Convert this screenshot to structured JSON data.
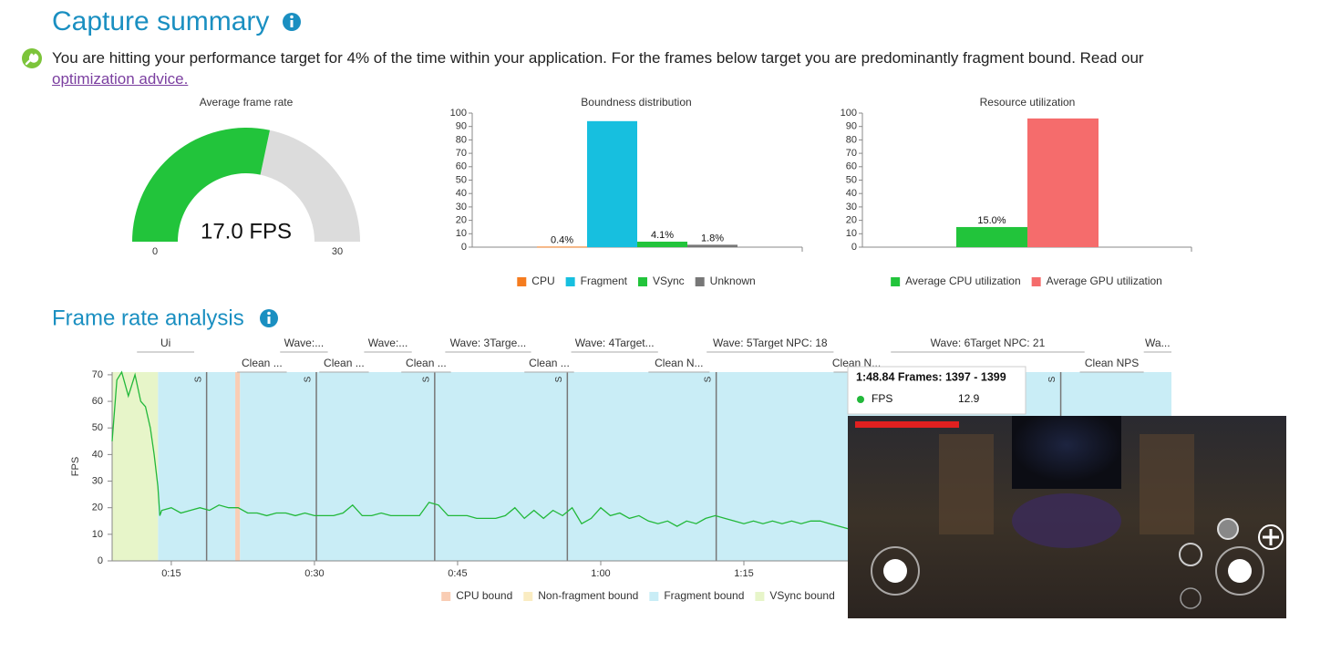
{
  "capture_summary": {
    "title": "Capture summary",
    "message": "You are hitting your performance target for 4% of the time within your application. For the frames below target you are predominantly fragment bound. Read our",
    "link": "optimization advice."
  },
  "frame_rate_analysis": {
    "title": "Frame rate analysis"
  },
  "chart_data": [
    {
      "type": "gauge",
      "title": "Average frame rate",
      "values": [
        17.0
      ],
      "value_labels": [
        "17.0 FPS"
      ],
      "ylim": [
        0,
        30
      ],
      "yticks": [
        0,
        30
      ],
      "color": "#22c43b",
      "track_color": "#dcdcdc"
    },
    {
      "type": "bar",
      "title": "Boundness distribution",
      "ylim": [
        0,
        100
      ],
      "yticks": [
        0,
        10,
        20,
        30,
        40,
        50,
        60,
        70,
        80,
        90,
        100
      ],
      "series": [
        {
          "name": "CPU",
          "color": "#f57c1f",
          "values": [
            0.4
          ],
          "value_labels": [
            "0.4%"
          ]
        },
        {
          "name": "Fragment",
          "color": "#17bfdf",
          "values": [
            94
          ]
        },
        {
          "name": "VSync",
          "color": "#22c43b",
          "values": [
            4.1
          ],
          "value_labels": [
            "4.1%"
          ]
        },
        {
          "name": "Unknown",
          "color": "#777777",
          "values": [
            1.8
          ],
          "value_labels": [
            "1.8%"
          ]
        }
      ]
    },
    {
      "type": "bar",
      "title": "Resource utilization",
      "ylim": [
        0,
        100
      ],
      "yticks": [
        0,
        10,
        20,
        30,
        40,
        50,
        60,
        70,
        80,
        90,
        100
      ],
      "series": [
        {
          "name": "Average CPU utilization",
          "color": "#22c43b",
          "values": [
            15.0
          ],
          "value_labels": [
            "15.0%"
          ]
        },
        {
          "name": "Average GPU utilization",
          "color": "#f56c6c",
          "values": [
            96
          ]
        }
      ]
    },
    {
      "type": "line",
      "ylabel": "FPS",
      "xlim": [
        8.8,
        119.8
      ],
      "ylim": [
        0,
        71
      ],
      "xticks": [
        {
          "value": 15,
          "label": "0:15"
        },
        {
          "value": 30,
          "label": "0:30"
        },
        {
          "value": 45,
          "label": "0:45"
        },
        {
          "value": 60,
          "label": "1:00"
        },
        {
          "value": 75,
          "label": "1:15"
        }
      ],
      "yticks": [
        0,
        10,
        20,
        30,
        40,
        50,
        60,
        70
      ],
      "line": {
        "color": "#22b83a",
        "x": [
          8.8,
          9.3,
          9.8,
          10.5,
          11.2,
          11.8,
          12.3,
          12.8,
          13.2,
          13.6,
          13.8,
          14,
          15,
          16,
          17,
          18,
          19,
          20,
          21,
          22,
          23,
          24,
          25,
          26,
          27,
          28,
          29,
          30,
          31,
          32,
          33,
          34,
          35,
          36,
          37,
          38,
          39,
          40,
          41,
          42,
          43,
          44,
          45,
          46,
          47,
          48,
          49,
          50,
          51,
          52,
          53,
          54,
          55,
          56,
          57,
          58,
          59,
          60,
          61,
          62,
          63,
          64,
          65,
          66,
          67,
          68,
          69,
          70,
          71,
          72,
          73,
          74,
          75,
          76,
          77,
          78,
          79,
          80,
          81,
          82,
          83,
          84,
          85,
          86
        ],
        "values": [
          45,
          68,
          71,
          62,
          70,
          60,
          58,
          50,
          40,
          28,
          17,
          19,
          20,
          18,
          19,
          20,
          19,
          21,
          20,
          20,
          18,
          18,
          17,
          18,
          18,
          17,
          18,
          17,
          17,
          17,
          18,
          21,
          17,
          17,
          18,
          17,
          17,
          17,
          17,
          22,
          21,
          17,
          17,
          17,
          16,
          16,
          16,
          17,
          20,
          16,
          19,
          16,
          19,
          17,
          20,
          14,
          16,
          20,
          17,
          18,
          16,
          17,
          15,
          14,
          15,
          13,
          15,
          14,
          16,
          17,
          16,
          15,
          14,
          15,
          14,
          15,
          14,
          15,
          14,
          15,
          15,
          14,
          13,
          12
        ]
      },
      "series": [
        {
          "name": "CPU bound",
          "color": "#f9cdb4",
          "spans": [
            [
              21.7,
              22.2
            ]
          ]
        },
        {
          "name": "Non-fragment bound",
          "color": "#faecc2",
          "spans": []
        },
        {
          "name": "Fragment bound",
          "color": "#c9edf6",
          "spans": [
            [
              13.6,
              21.7
            ],
            [
              22.2,
              119.8
            ]
          ]
        },
        {
          "name": "VSync bound",
          "color": "#e7f5c9",
          "spans": [
            [
              8.8,
              13.6
            ]
          ]
        }
      ],
      "markers": [
        {
          "x": 18.7,
          "label": "S"
        },
        {
          "x": 30.2,
          "label": "S"
        },
        {
          "x": 42.6,
          "label": "S"
        },
        {
          "x": 56.5,
          "label": "S"
        },
        {
          "x": 72.1,
          "label": "S"
        },
        {
          "x": 108.2,
          "label": "S"
        }
      ],
      "annotation_rows": [
        [
          {
            "label": "Ui",
            "start": 11.4,
            "end": 17.4
          },
          {
            "label": "Wave:...",
            "start": 26.4,
            "end": 31.4
          },
          {
            "label": "Wave:...",
            "start": 35.2,
            "end": 40.2
          },
          {
            "label": "Wave: 3Targe...",
            "start": 43.7,
            "end": 52.7
          },
          {
            "label": "Wave: 4Target...",
            "start": 56.9,
            "end": 66.0
          },
          {
            "label": "Wave: 5Target NPC: 18",
            "start": 71.1,
            "end": 84.4
          },
          {
            "label": "Wave: 6Target NPC: 21",
            "start": 90.4,
            "end": 110.7
          },
          {
            "label": "Wa...",
            "start": 116.9,
            "end": 119.8
          }
        ],
        [
          {
            "label": "Clean ...",
            "start": 21.9,
            "end": 27.1
          },
          {
            "label": "Clean ...",
            "start": 30.5,
            "end": 35.7
          },
          {
            "label": "Clean ...",
            "start": 39.1,
            "end": 44.3
          },
          {
            "label": "Clean ...",
            "start": 52.0,
            "end": 57.2
          },
          {
            "label": "Clean N...",
            "start": 65.0,
            "end": 71.4
          },
          {
            "label": "Clean N...",
            "start": 84.4,
            "end": 89.2
          },
          {
            "label": "Clean NPS",
            "start": 110.2,
            "end": 116.9
          }
        ]
      ],
      "tooltip": {
        "title": "1:48.84 Frames: 1397 - 1399",
        "label": "FPS",
        "values": [
          12.9
        ]
      }
    }
  ]
}
